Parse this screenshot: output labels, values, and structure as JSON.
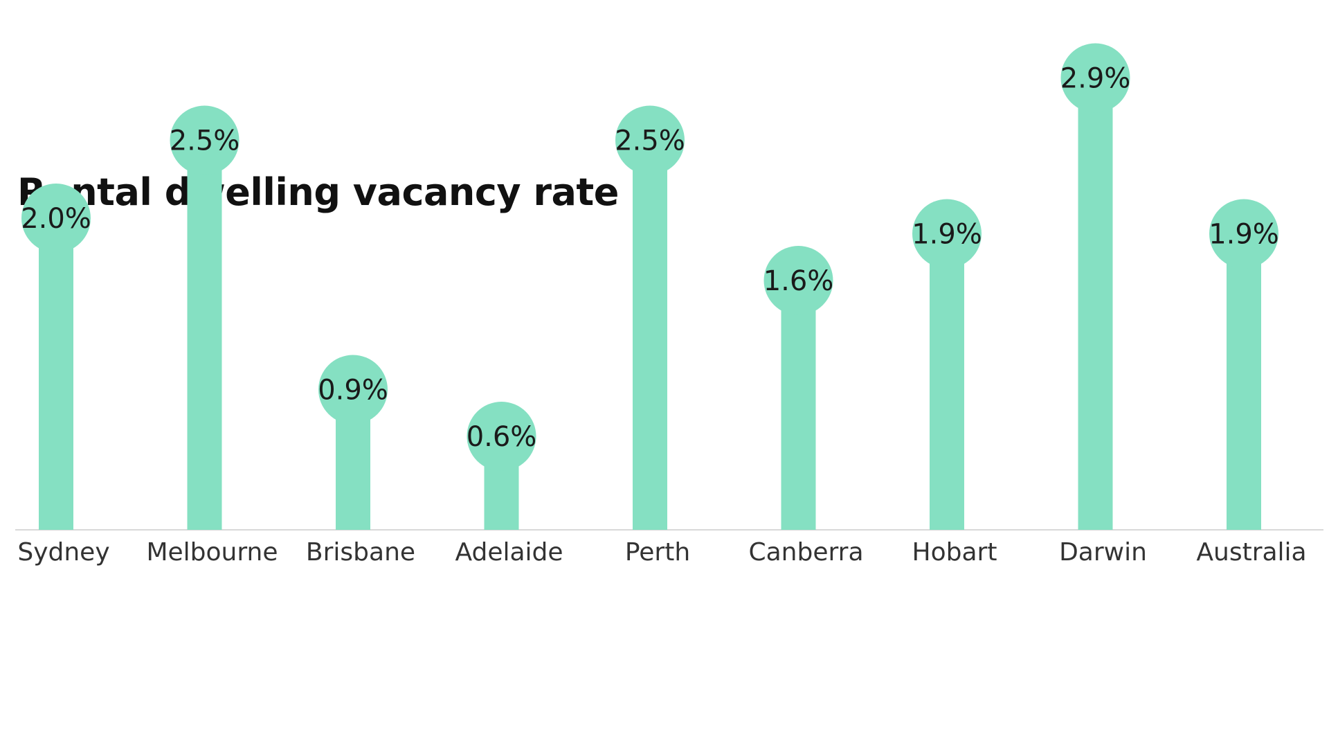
{
  "chart_data": {
    "type": "bar",
    "title": "Rental dwelling vacancy rate",
    "categories": [
      "Sydney",
      "Melbourne",
      "Brisbane",
      "Adelaide",
      "Perth",
      "Canberra",
      "Hobart",
      "Darwin",
      "Australia"
    ],
    "values": [
      2.0,
      2.5,
      0.9,
      0.6,
      2.5,
      1.6,
      1.9,
      2.9,
      1.9
    ],
    "value_labels": [
      "2.0%",
      "2.5%",
      "0.9%",
      "0.6%",
      "2.5%",
      "1.6%",
      "1.9%",
      "2.9%",
      "1.9%"
    ],
    "xlabel": "",
    "ylabel": "",
    "ylim": [
      0,
      3.0
    ],
    "grid": false,
    "legend": "none",
    "style": "lollipop",
    "colors": {
      "bar": "#85e0c2",
      "baseline": "#d8d8d8",
      "title": "#111111",
      "text": "#1a1a1a"
    }
  }
}
